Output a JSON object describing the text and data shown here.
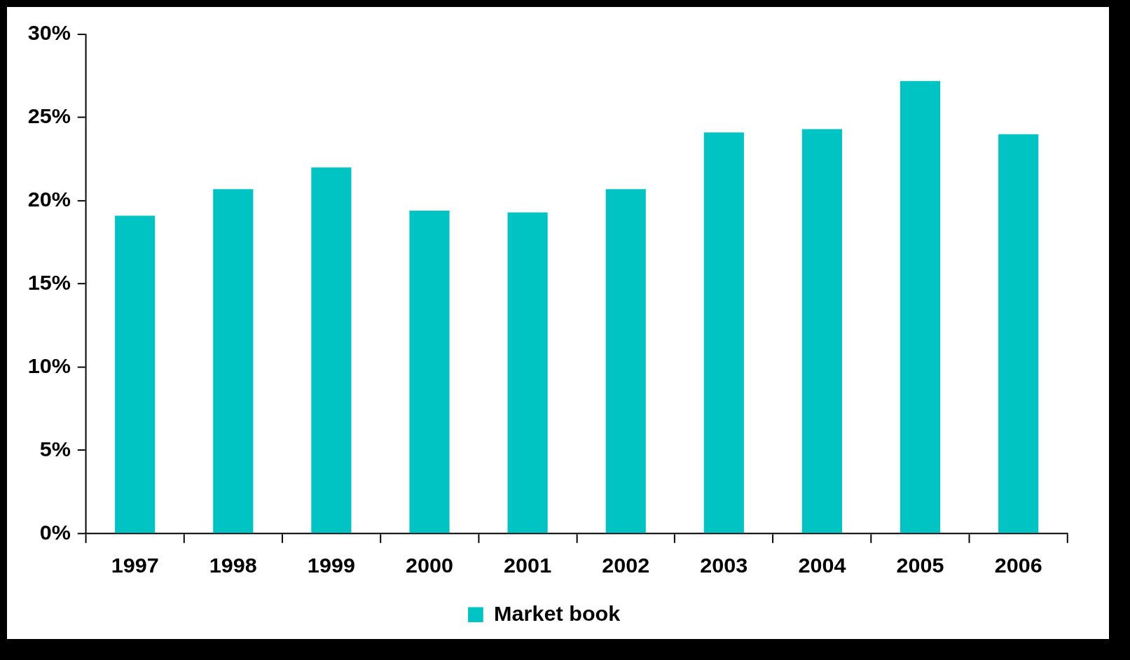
{
  "chart_data": {
    "type": "bar",
    "categories": [
      "1997",
      "1998",
      "1999",
      "2000",
      "2001",
      "2002",
      "2003",
      "2004",
      "2005",
      "2006"
    ],
    "series": [
      {
        "name": "Market book",
        "color": "#00c4c4",
        "values": [
          19.1,
          20.7,
          22.0,
          19.4,
          19.3,
          20.7,
          24.1,
          24.3,
          27.2,
          24.0
        ]
      }
    ],
    "ylim": [
      0,
      30
    ],
    "yticks": [
      {
        "value": 0,
        "label": "0%"
      },
      {
        "value": 5,
        "label": "5%"
      },
      {
        "value": 10,
        "label": "10%"
      },
      {
        "value": 15,
        "label": "15%"
      },
      {
        "value": 20,
        "label": "20%"
      },
      {
        "value": 25,
        "label": "25%"
      },
      {
        "value": 30,
        "label": "30%"
      }
    ],
    "grid": false,
    "legend": "bottom"
  }
}
